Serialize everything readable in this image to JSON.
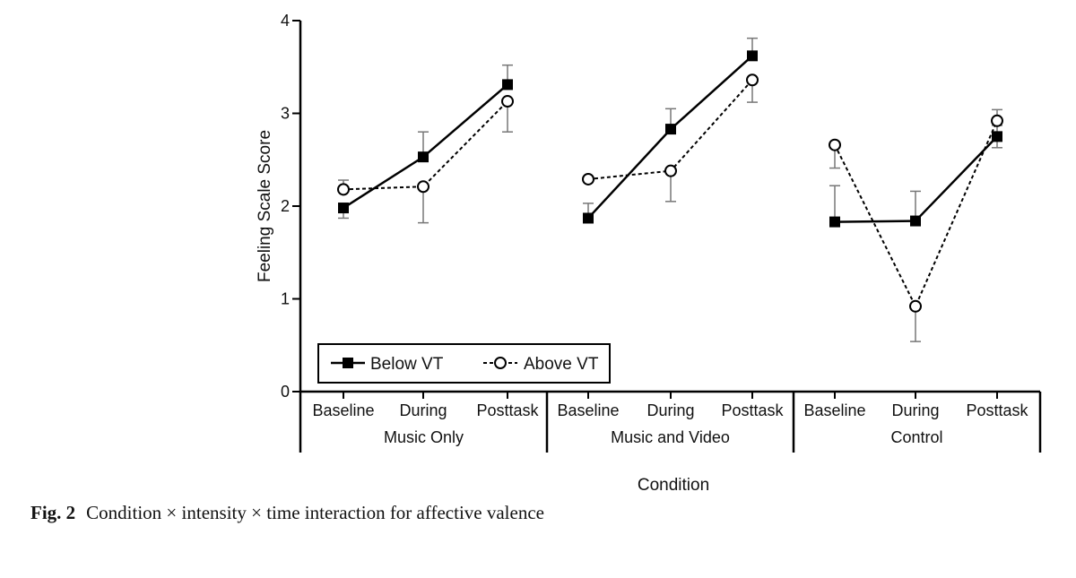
{
  "chart_data": {
    "type": "line",
    "ylabel": "Feeling Scale Score",
    "xlabel": "Condition",
    "ylim": [
      0,
      4
    ],
    "yticks": [
      "0",
      "1",
      "2",
      "3",
      "4"
    ],
    "groups": [
      {
        "name": "Music Only",
        "categories": [
          "Baseline",
          "During",
          "Posttask"
        ]
      },
      {
        "name": "Music and Video",
        "categories": [
          "Baseline",
          "During",
          "Posttask"
        ]
      },
      {
        "name": "Control",
        "categories": [
          "Baseline",
          "During",
          "Posttask"
        ]
      }
    ],
    "series": [
      {
        "name": "Below VT",
        "marker": "filled-square",
        "line": "solid",
        "values": [
          [
            1.98,
            2.53,
            3.31
          ],
          [
            1.87,
            2.83,
            3.62
          ],
          [
            1.83,
            1.84,
            2.75
          ]
        ],
        "error_up": [
          [
            0.05,
            0.27,
            0.21
          ],
          [
            0.16,
            0.22,
            0.19
          ],
          [
            0.39,
            0.32,
            0.12
          ]
        ],
        "error_down": [
          [
            0.11,
            0.0,
            0.0
          ],
          [
            0.0,
            0.0,
            0.0
          ],
          [
            0.0,
            0.0,
            0.12
          ]
        ]
      },
      {
        "name": "Above VT",
        "marker": "open-circle",
        "line": "dashed",
        "values": [
          [
            2.18,
            2.21,
            3.13
          ],
          [
            2.29,
            2.38,
            3.36
          ],
          [
            2.66,
            0.92,
            2.92
          ]
        ],
        "error_up": [
          [
            0.1,
            0.0,
            0.0
          ],
          [
            0.0,
            0.0,
            0.0
          ],
          [
            0.0,
            0.0,
            0.12
          ]
        ],
        "error_down": [
          [
            0.0,
            0.39,
            0.33
          ],
          [
            0.0,
            0.33,
            0.24
          ],
          [
            0.25,
            0.38,
            0.0
          ]
        ]
      }
    ],
    "legend": {
      "position": "bottom-left",
      "labels": [
        "Below VT",
        "Above VT"
      ]
    }
  },
  "caption": {
    "lead": "Fig. 2",
    "text": "Condition × intensity × time interaction for affective valence"
  }
}
